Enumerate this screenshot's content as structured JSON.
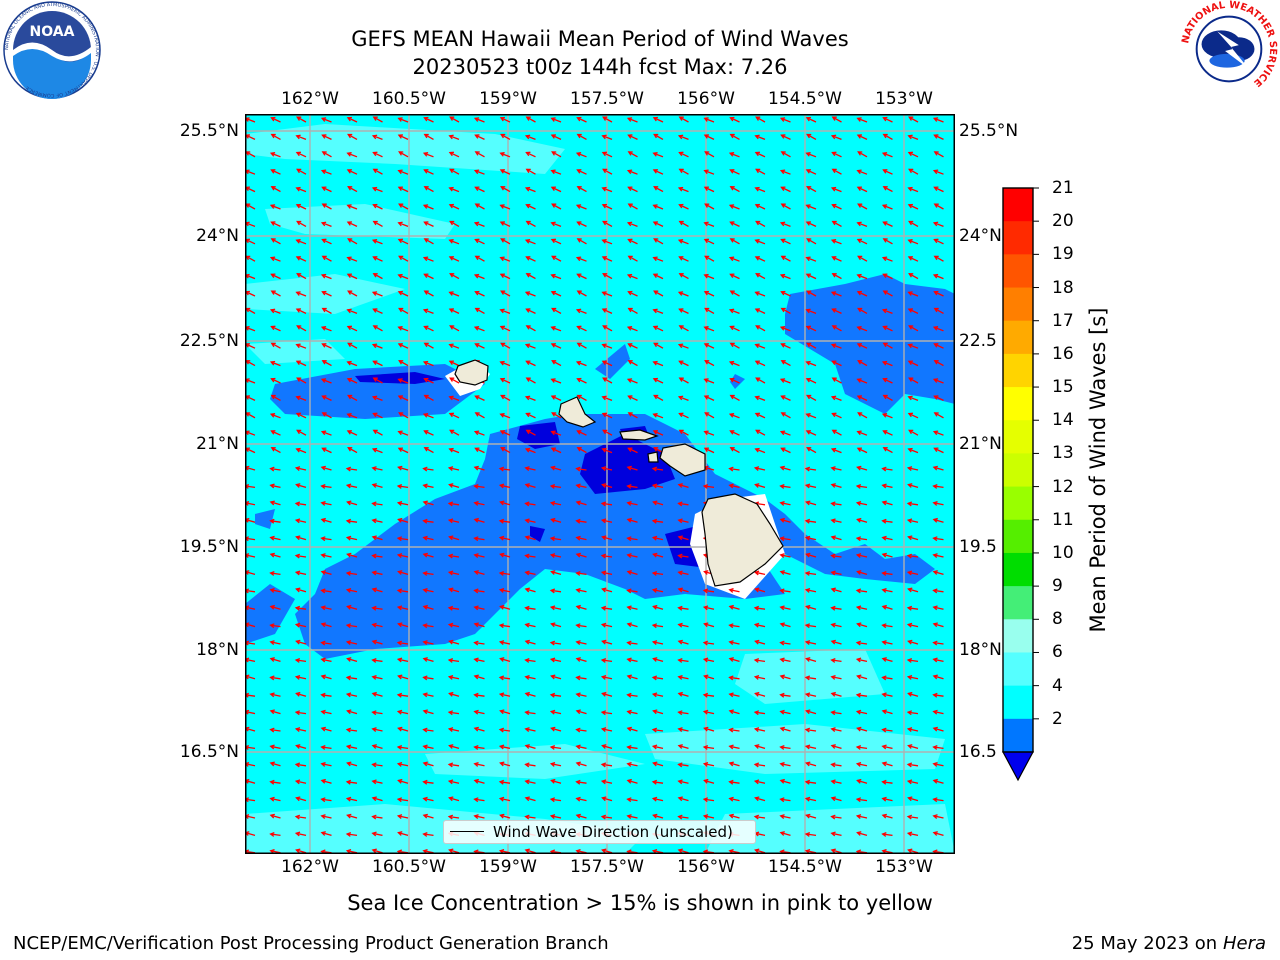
{
  "title": {
    "line1": "GEFS MEAN Hawaii Mean Period of Wind Waves",
    "line2": "20230523 t00z 144h fcst   Max: 7.26"
  },
  "map": {
    "lon_labels": [
      "162°W",
      "160.5°W",
      "159°W",
      "157.5°W",
      "156°W",
      "154.5°W",
      "153°W"
    ],
    "lat_labels_left": [
      "25.5°N",
      "24°N",
      "22.5°N",
      "21°N",
      "19.5°N",
      "18°N",
      "16.5°N"
    ],
    "lat_labels_right": [
      "25.5°N",
      "24°N",
      "22.5",
      "21°N",
      "19.5",
      "18°N",
      "16.5"
    ],
    "legend_label": "Wind Wave Direction (unscaled)",
    "arrow_color": "#ff0000",
    "land_color": "#efebd9"
  },
  "colorbar": {
    "label": "Mean Period of Wind Waves [s]",
    "tick_labels": [
      "21",
      "20",
      "19",
      "18",
      "17",
      "16",
      "15",
      "14",
      "13",
      "12",
      "11",
      "10",
      "9",
      "8",
      "6",
      "4",
      "2"
    ],
    "colors": [
      "#ff0000",
      "#ff2a00",
      "#ff5500",
      "#ff7f00",
      "#ffaa00",
      "#ffd400",
      "#ffff00",
      "#e5ff00",
      "#ccff00",
      "#99ff00",
      "#55ee00",
      "#00dd00",
      "#44ee77",
      "#99ffee",
      "#55ffff",
      "#00ffff",
      "#0077ff"
    ],
    "extend_color": "#0000ee"
  },
  "ice_note": "Sea Ice Concentration > 15% is shown in pink to yellow",
  "footer": {
    "left": "NCEP/EMC/Verification Post Processing Product Generation Branch",
    "right_date": "25 May 2023 on",
    "right_host": "Hera"
  },
  "logos": {
    "noaa_text": "NOAA",
    "noaa_ring": "NATIONAL OCEANIC AND ATMOSPHERIC ADMINISTRATION · U.S. DEPARTMENT OF COMMERCE",
    "nws_ring": "NATIONAL WEATHER SERVICE"
  }
}
